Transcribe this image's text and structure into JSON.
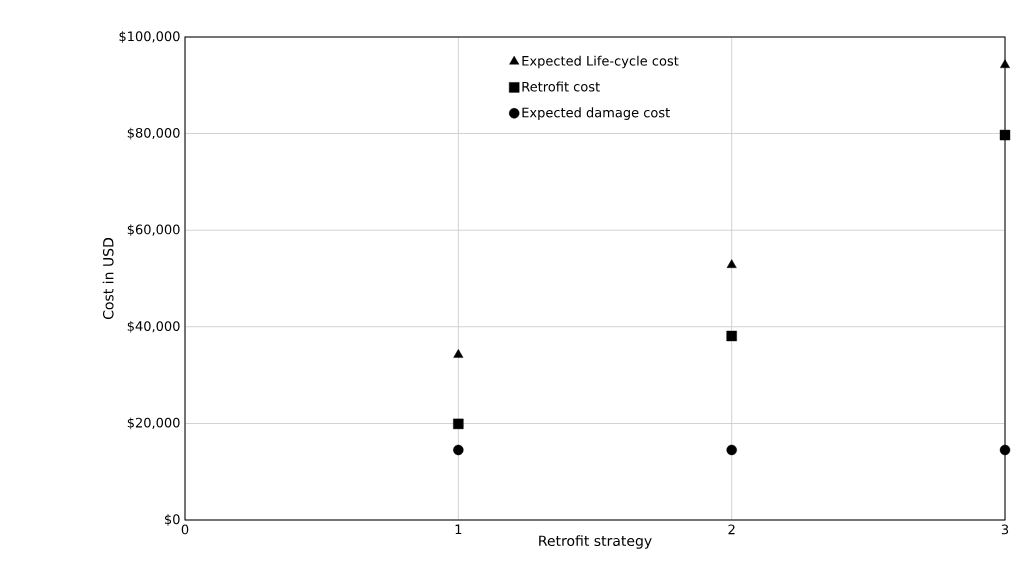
{
  "chart_data": {
    "type": "scatter",
    "xlabel": "Retrofit strategy",
    "ylabel": "Cost in USD",
    "xlim": [
      0,
      3
    ],
    "xticks": [
      0,
      1,
      2,
      3
    ],
    "ylim": [
      0,
      100000
    ],
    "yticks": [
      {
        "value": 0,
        "label": "$0"
      },
      {
        "value": 20000,
        "label": "$20,000"
      },
      {
        "value": 40000,
        "label": "$40,000"
      },
      {
        "value": 60000,
        "label": "$60,000"
      },
      {
        "value": 80000,
        "label": "$80,000"
      },
      {
        "value": 100000,
        "label": "$100,000"
      }
    ],
    "grid": true,
    "legend": "top",
    "series": [
      {
        "name": "Expected Life-cycle cost",
        "color": "#000000",
        "marker": "triangle",
        "x": [
          1,
          2,
          3
        ],
        "values": [
          34200,
          52800,
          94200
        ]
      },
      {
        "name": "Retrofit cost",
        "color": "#000000",
        "marker": "square",
        "x": [
          1,
          2,
          3
        ],
        "values": [
          19900,
          38100,
          79700
        ]
      },
      {
        "name": "Expected damage cost",
        "color": "#000000",
        "marker": "circle",
        "x": [
          1,
          2,
          3
        ],
        "values": [
          14500,
          14500,
          14500
        ]
      }
    ]
  }
}
